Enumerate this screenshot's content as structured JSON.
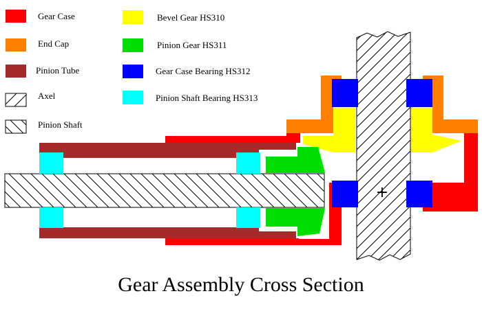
{
  "title": "Gear Assembly Cross Section",
  "legend": [
    {
      "label": "Gear Case",
      "color": "#ff0000",
      "swatch": "solid"
    },
    {
      "label": "End Cap",
      "color": "#ff8000",
      "swatch": "solid"
    },
    {
      "label": "Pinion Tube",
      "color": "#a52a2a",
      "swatch": "solid"
    },
    {
      "label": "Axel",
      "color": "#ffffff",
      "swatch": "hatch-forward"
    },
    {
      "label": "Pinion Shaft",
      "color": "#ffffff",
      "swatch": "hatch-back"
    },
    {
      "label": "Bevel Gear HS310",
      "color": "#ffff00",
      "swatch": "solid"
    },
    {
      "label": "Pinion Gear HS311",
      "color": "#00dd00",
      "swatch": "solid"
    },
    {
      "label": "Gear Case Bearing HS312",
      "color": "#0000ff",
      "swatch": "solid"
    },
    {
      "label": "Pinion Shaft Bearing HS313",
      "color": "#00ffff",
      "swatch": "solid"
    }
  ],
  "center_mark": "+"
}
